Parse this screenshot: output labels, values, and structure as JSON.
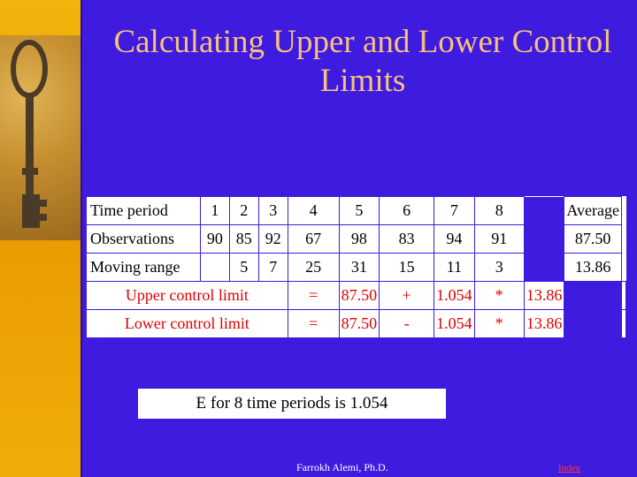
{
  "title": "Calculating Upper and Lower Control Limits",
  "table": {
    "header": [
      "Time period",
      "1",
      "2",
      "3",
      "4",
      "5",
      "6",
      "7",
      "8",
      "Average"
    ],
    "observations": [
      "Observations",
      "90",
      "85",
      "92",
      "67",
      "98",
      "83",
      "94",
      "91",
      "87.50"
    ],
    "moving_range": [
      "Moving range",
      "",
      "5",
      "7",
      "25",
      "31",
      "15",
      "11",
      "3",
      "13.86"
    ],
    "ucl": [
      "Upper control limit",
      "=",
      "87.50",
      "+",
      "1.054",
      "*",
      "13.86",
      ""
    ],
    "lcl": [
      "Lower control limit",
      "=",
      "87.50",
      "-",
      "1.054",
      "*",
      "13.86",
      ""
    ]
  },
  "note": "E for 8 time periods is 1.054",
  "footer": "Farrokh Alemi, Ph.D.",
  "index_link": "Index",
  "colors": {
    "background": "#3f1be0",
    "left_bar": "#f3b40d",
    "title": "#f6c27a",
    "limit_text": "#e00000",
    "index_link": "#ff3b3b"
  },
  "icons": {
    "decoration": "antique-key-icon"
  }
}
